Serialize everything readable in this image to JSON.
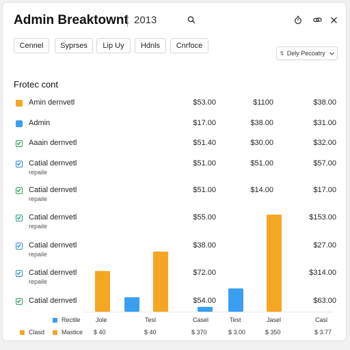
{
  "header": {
    "title": "Admin Breaktownt",
    "year": "2013",
    "icons": [
      "search-icon",
      "timer-icon",
      "link-icon",
      "close-icon"
    ]
  },
  "filters": [
    "Cennel",
    "Syprses",
    "Lip Uy",
    "Hdnls",
    "Cnrfoce"
  ],
  "dropdown": {
    "label": "Dely Pecoatry"
  },
  "section": {
    "title": "Frotec cont"
  },
  "rows": [
    {
      "label": "Amin dernvetl",
      "sub": "",
      "marker": "square",
      "color": "#f5a623",
      "v1": "$53.00",
      "v2": "$1100",
      "v3": "$38.00"
    },
    {
      "label": "Admin",
      "sub": "",
      "marker": "square",
      "color": "#3a9ff0",
      "v1": "$17.00",
      "v2": "$38.00",
      "v3": "$31.00"
    },
    {
      "label": "Aaain dernvetl",
      "sub": "",
      "marker": "check",
      "color": "#22a65a",
      "v1": "$51.40",
      "v2": "$30.00",
      "v3": "$32.00"
    },
    {
      "label": "Catial dernvetl",
      "sub": "repaile",
      "marker": "check",
      "color": "#2f86de",
      "v1": "$51.00",
      "v2": "$51.00",
      "v3": "$57.00"
    },
    {
      "label": "Catial dernvetl",
      "sub": "repaile",
      "marker": "check",
      "color": "#22a65a",
      "v1": "$51.00",
      "v2": "$14.00",
      "v3": "$17.00"
    },
    {
      "label": "Catial dernvetl",
      "sub": "repaile",
      "marker": "check",
      "color": "#1f9b8c",
      "v1": "$55.00",
      "v2": "",
      "v3": "$153.00"
    },
    {
      "label": "Catial dernvetl",
      "sub": "repaile",
      "marker": "check",
      "color": "#2f86de",
      "v1": "$38.00",
      "v2": "",
      "v3": "$27.00"
    },
    {
      "label": "Catial dernvetl",
      "sub": "repaile",
      "marker": "check",
      "color": "#2a8fd6",
      "v1": "$72.00",
      "v2": "",
      "v3": "$314.00"
    },
    {
      "label": "Catial dernvetl",
      "sub": "",
      "marker": "check",
      "color": "#22a65a",
      "v1": "$54.00",
      "v2": "",
      "v3": "$63.00"
    }
  ],
  "chart_data": {
    "type": "bar",
    "categories": [
      "Jole",
      "Tesl",
      "Casel",
      "Test",
      "Jasel",
      "Casl"
    ],
    "series": [
      {
        "name": "Rectile",
        "color": "#3a9ff0",
        "values": [
          null,
          15,
          null,
          5,
          24,
          null
        ]
      },
      {
        "name": "Mastice",
        "color": "#f5a623",
        "values": [
          42,
          null,
          62,
          null,
          null,
          100
        ]
      }
    ],
    "footer_values": [
      "$ 40",
      "$ 40",
      "$ 370",
      "$ 3.00",
      "$ 350",
      "$ 3.77"
    ],
    "legend_extra": "Clasd",
    "ylim": [
      0,
      100
    ]
  },
  "colors": {
    "accent_orange": "#f5a623",
    "accent_blue": "#3a9ff0"
  }
}
